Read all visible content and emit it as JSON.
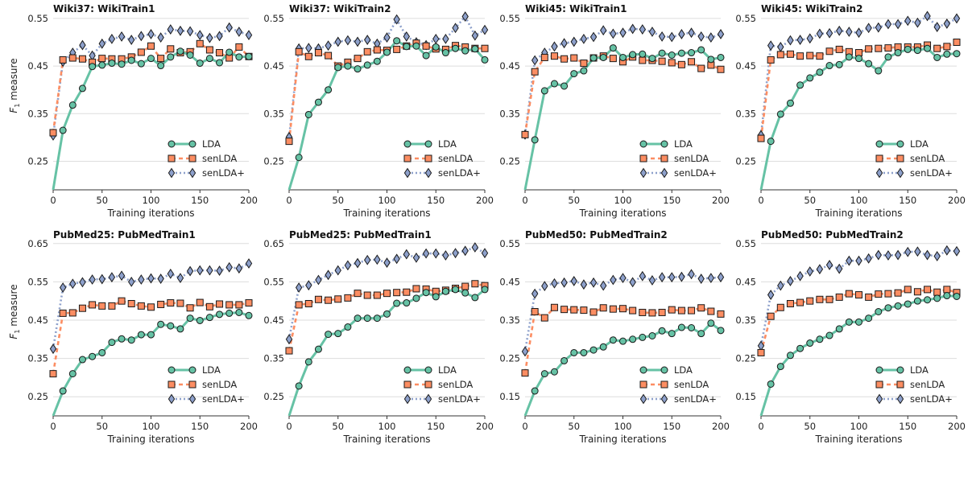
{
  "figure": {
    "ylabel_text": "F",
    "ylabel_sub": "1",
    "ylabel_suffix": " measure"
  },
  "colors": {
    "LDA": "#66c2a5",
    "senLDA": "#fc8d62",
    "senLDAplus": "#8da0cb",
    "marker_edge": "#1a1a1a",
    "grid": "#dddddd",
    "axis": "#333333"
  },
  "chart_data": [
    {
      "type": "line",
      "title": "Wiki37: WikiTrain1",
      "xlabel": "Training iterations",
      "ylabel": "F1 measure",
      "xlim": [
        0,
        200
      ],
      "ylim": [
        0.19,
        0.56
      ],
      "xticks": [
        "0",
        "50",
        "100",
        "150",
        "200"
      ],
      "yticks": [
        "0.25",
        "0.35",
        "0.45",
        "0.55"
      ],
      "legend_position": "lower-right",
      "grid": "horizontal",
      "x": [
        0,
        10,
        20,
        30,
        40,
        50,
        60,
        70,
        80,
        90,
        100,
        110,
        120,
        130,
        140,
        150,
        160,
        170,
        180,
        190,
        200
      ],
      "series": [
        {
          "name": "LDA",
          "values": [
            0.19,
            0.315,
            0.368,
            0.403,
            0.449,
            0.452,
            0.456,
            0.454,
            0.462,
            0.455,
            0.466,
            0.451,
            0.469,
            0.481,
            0.473,
            0.456,
            0.466,
            0.457,
            0.479,
            0.469,
            0.47
          ]
        },
        {
          "name": "senLDA",
          "values": [
            0.31,
            0.463,
            0.467,
            0.465,
            0.458,
            0.466,
            0.465,
            0.465,
            0.469,
            0.479,
            0.492,
            0.466,
            0.486,
            0.478,
            0.48,
            0.497,
            0.484,
            0.478,
            0.467,
            0.49,
            0.47
          ]
        },
        {
          "name": "senLDA+",
          "values": [
            0.304,
            0.459,
            0.478,
            0.494,
            0.472,
            0.497,
            0.507,
            0.512,
            0.505,
            0.513,
            0.517,
            0.51,
            0.527,
            0.524,
            0.523,
            0.515,
            0.509,
            0.513,
            0.531,
            0.522,
            0.515
          ]
        }
      ]
    },
    {
      "type": "line",
      "title": "Wiki37: WikiTrain2",
      "xlabel": "Training iterations",
      "ylabel": "",
      "xlim": [
        0,
        200
      ],
      "ylim": [
        0.19,
        0.56
      ],
      "xticks": [
        "0",
        "50",
        "100",
        "150",
        "200"
      ],
      "yticks": [
        "0.25",
        "0.35",
        "0.45",
        "0.55"
      ],
      "legend_position": "lower-right",
      "grid": "horizontal",
      "x": [
        0,
        10,
        20,
        30,
        40,
        50,
        60,
        70,
        80,
        90,
        100,
        110,
        120,
        130,
        140,
        150,
        160,
        170,
        180,
        190,
        200
      ],
      "series": [
        {
          "name": "LDA",
          "values": [
            0.19,
            0.258,
            0.348,
            0.374,
            0.4,
            0.447,
            0.45,
            0.444,
            0.452,
            0.46,
            0.479,
            0.503,
            0.491,
            0.492,
            0.472,
            0.49,
            0.478,
            0.487,
            0.482,
            0.486,
            0.463
          ]
        },
        {
          "name": "senLDA",
          "values": [
            0.292,
            0.48,
            0.47,
            0.478,
            0.472,
            0.45,
            0.458,
            0.466,
            0.48,
            0.484,
            0.483,
            0.485,
            0.492,
            0.498,
            0.492,
            0.486,
            0.485,
            0.493,
            0.49,
            0.487,
            0.487
          ]
        },
        {
          "name": "senLDA+",
          "values": [
            0.301,
            0.487,
            0.488,
            0.487,
            0.493,
            0.501,
            0.504,
            0.501,
            0.505,
            0.497,
            0.51,
            0.548,
            0.512,
            0.5,
            0.494,
            0.507,
            0.507,
            0.53,
            0.554,
            0.514,
            0.526
          ]
        }
      ]
    },
    {
      "type": "line",
      "title": "Wiki45: WikiTrain1",
      "xlabel": "Training iterations",
      "ylabel": "",
      "xlim": [
        0,
        200
      ],
      "ylim": [
        0.19,
        0.56
      ],
      "xticks": [
        "0",
        "50",
        "100",
        "150",
        "200"
      ],
      "yticks": [
        "0.25",
        "0.35",
        "0.45",
        "0.55"
      ],
      "legend_position": "lower-right",
      "grid": "horizontal",
      "x": [
        0,
        10,
        20,
        30,
        40,
        50,
        60,
        70,
        80,
        90,
        100,
        110,
        120,
        130,
        140,
        150,
        160,
        170,
        180,
        190,
        200
      ],
      "series": [
        {
          "name": "LDA",
          "values": [
            0.19,
            0.295,
            0.398,
            0.413,
            0.408,
            0.434,
            0.44,
            0.467,
            0.468,
            0.488,
            0.468,
            0.474,
            0.475,
            0.466,
            0.477,
            0.473,
            0.477,
            0.478,
            0.484,
            0.464,
            0.468
          ]
        },
        {
          "name": "senLDA",
          "values": [
            0.306,
            0.438,
            0.468,
            0.471,
            0.465,
            0.467,
            0.456,
            0.467,
            0.471,
            0.466,
            0.459,
            0.469,
            0.462,
            0.462,
            0.46,
            0.457,
            0.453,
            0.459,
            0.445,
            0.452,
            0.443
          ]
        },
        {
          "name": "senLDA+",
          "values": [
            0.306,
            0.462,
            0.478,
            0.491,
            0.498,
            0.501,
            0.507,
            0.511,
            0.525,
            0.518,
            0.52,
            0.528,
            0.527,
            0.522,
            0.512,
            0.511,
            0.517,
            0.52,
            0.512,
            0.51,
            0.517
          ]
        }
      ]
    },
    {
      "type": "line",
      "title": "Wiki45: WikiTrain2",
      "xlabel": "Training iterations",
      "ylabel": "",
      "xlim": [
        0,
        200
      ],
      "ylim": [
        0.19,
        0.56
      ],
      "xticks": [
        "0",
        "50",
        "100",
        "150",
        "200"
      ],
      "yticks": [
        "0.25",
        "0.35",
        "0.45",
        "0.55"
      ],
      "legend_position": "lower-right",
      "grid": "horizontal",
      "x": [
        0,
        10,
        20,
        30,
        40,
        50,
        60,
        70,
        80,
        90,
        100,
        110,
        120,
        130,
        140,
        150,
        160,
        170,
        180,
        190,
        200
      ],
      "series": [
        {
          "name": "LDA",
          "values": [
            0.19,
            0.292,
            0.349,
            0.372,
            0.41,
            0.425,
            0.437,
            0.451,
            0.453,
            0.469,
            0.466,
            0.455,
            0.44,
            0.469,
            0.478,
            0.485,
            0.483,
            0.487,
            0.468,
            0.475,
            0.476
          ]
        },
        {
          "name": "senLDA",
          "values": [
            0.298,
            0.463,
            0.474,
            0.475,
            0.471,
            0.472,
            0.471,
            0.481,
            0.485,
            0.48,
            0.478,
            0.486,
            0.487,
            0.488,
            0.49,
            0.49,
            0.49,
            0.494,
            0.487,
            0.491,
            0.5
          ]
        },
        {
          "name": "senLDA+",
          "values": [
            0.305,
            0.493,
            0.49,
            0.504,
            0.505,
            0.508,
            0.518,
            0.519,
            0.524,
            0.522,
            0.52,
            0.53,
            0.531,
            0.538,
            0.538,
            0.545,
            0.541,
            0.555,
            0.532,
            0.539,
            0.55
          ]
        }
      ]
    },
    {
      "type": "line",
      "title": "PubMed25: PubMedTrain1",
      "xlabel": "Training iterations",
      "ylabel": "F1 measure",
      "xlim": [
        0,
        200
      ],
      "ylim": [
        0.2,
        0.66
      ],
      "xticks": [
        "0",
        "50",
        "100",
        "150",
        "200"
      ],
      "yticks": [
        "0.25",
        "0.35",
        "0.45",
        "0.55",
        "0.65"
      ],
      "legend_position": "lower-right",
      "grid": "horizontal",
      "x": [
        0,
        10,
        20,
        30,
        40,
        50,
        60,
        70,
        80,
        90,
        100,
        110,
        120,
        130,
        140,
        150,
        160,
        170,
        180,
        190,
        200
      ],
      "series": [
        {
          "name": "LDA",
          "values": [
            0.2,
            0.265,
            0.31,
            0.347,
            0.355,
            0.365,
            0.392,
            0.401,
            0.398,
            0.412,
            0.412,
            0.439,
            0.435,
            0.427,
            0.455,
            0.449,
            0.457,
            0.465,
            0.468,
            0.47,
            0.462
          ]
        },
        {
          "name": "senLDA",
          "values": [
            0.31,
            0.468,
            0.469,
            0.481,
            0.49,
            0.487,
            0.487,
            0.5,
            0.493,
            0.487,
            0.484,
            0.491,
            0.495,
            0.494,
            0.482,
            0.496,
            0.485,
            0.492,
            0.49,
            0.49,
            0.495
          ]
        },
        {
          "name": "senLDA+",
          "values": [
            0.375,
            0.535,
            0.545,
            0.549,
            0.556,
            0.557,
            0.562,
            0.566,
            0.55,
            0.556,
            0.559,
            0.558,
            0.571,
            0.56,
            0.578,
            0.58,
            0.58,
            0.579,
            0.588,
            0.585,
            0.598
          ]
        }
      ]
    },
    {
      "type": "line",
      "title": "PubMed25: PubMedTrain1",
      "xlabel": "Training iterations",
      "ylabel": "",
      "xlim": [
        0,
        200
      ],
      "ylim": [
        0.2,
        0.66
      ],
      "xticks": [
        "0",
        "50",
        "100",
        "150",
        "200"
      ],
      "yticks": [
        "0.25",
        "0.35",
        "0.45",
        "0.55",
        "0.65"
      ],
      "legend_position": "lower-right",
      "grid": "horizontal",
      "x": [
        0,
        10,
        20,
        30,
        40,
        50,
        60,
        70,
        80,
        90,
        100,
        110,
        120,
        130,
        140,
        150,
        160,
        170,
        180,
        190,
        200
      ],
      "series": [
        {
          "name": "LDA",
          "values": [
            0.2,
            0.278,
            0.341,
            0.374,
            0.413,
            0.415,
            0.432,
            0.455,
            0.455,
            0.455,
            0.466,
            0.494,
            0.495,
            0.507,
            0.522,
            0.511,
            0.525,
            0.53,
            0.521,
            0.509,
            0.53
          ]
        },
        {
          "name": "senLDA",
          "values": [
            0.37,
            0.49,
            0.493,
            0.504,
            0.502,
            0.505,
            0.508,
            0.52,
            0.515,
            0.515,
            0.52,
            0.522,
            0.523,
            0.532,
            0.531,
            0.525,
            0.528,
            0.533,
            0.538,
            0.545,
            0.54
          ]
        },
        {
          "name": "senLDA+",
          "values": [
            0.4,
            0.535,
            0.541,
            0.555,
            0.568,
            0.58,
            0.593,
            0.599,
            0.607,
            0.608,
            0.6,
            0.61,
            0.622,
            0.613,
            0.624,
            0.624,
            0.619,
            0.625,
            0.631,
            0.64,
            0.625
          ]
        }
      ]
    },
    {
      "type": "line",
      "title": "PubMed50: PubMedTrain2",
      "xlabel": "Training iterations",
      "ylabel": "",
      "xlim": [
        0,
        200
      ],
      "ylim": [
        0.1,
        0.56
      ],
      "xticks": [
        "0",
        "50",
        "100",
        "150",
        "200"
      ],
      "yticks": [
        "0.15",
        "0.25",
        "0.35",
        "0.45",
        "0.55"
      ],
      "legend_position": "lower-right",
      "grid": "horizontal",
      "x": [
        0,
        10,
        20,
        30,
        40,
        50,
        60,
        70,
        80,
        90,
        100,
        110,
        120,
        130,
        140,
        150,
        160,
        170,
        180,
        190,
        200
      ],
      "series": [
        {
          "name": "LDA",
          "values": [
            0.1,
            0.165,
            0.21,
            0.215,
            0.244,
            0.265,
            0.265,
            0.272,
            0.28,
            0.298,
            0.295,
            0.3,
            0.305,
            0.309,
            0.322,
            0.315,
            0.331,
            0.33,
            0.315,
            0.342,
            0.323
          ]
        },
        {
          "name": "senLDA",
          "values": [
            0.212,
            0.372,
            0.356,
            0.383,
            0.378,
            0.377,
            0.376,
            0.371,
            0.382,
            0.379,
            0.38,
            0.375,
            0.37,
            0.369,
            0.37,
            0.377,
            0.375,
            0.375,
            0.382,
            0.373,
            0.366
          ]
        },
        {
          "name": "senLDA+",
          "values": [
            0.268,
            0.419,
            0.439,
            0.446,
            0.448,
            0.452,
            0.443,
            0.448,
            0.44,
            0.455,
            0.46,
            0.449,
            0.465,
            0.454,
            0.462,
            0.462,
            0.463,
            0.47,
            0.458,
            0.46,
            0.462
          ]
        }
      ]
    },
    {
      "type": "line",
      "title": "PubMed50: PubMedTrain2",
      "xlabel": "Training iterations",
      "ylabel": "",
      "xlim": [
        0,
        200
      ],
      "ylim": [
        0.1,
        0.56
      ],
      "xticks": [
        "0",
        "50",
        "100",
        "150",
        "200"
      ],
      "yticks": [
        "0.15",
        "0.25",
        "0.35",
        "0.45",
        "0.55"
      ],
      "legend_position": "lower-right",
      "grid": "horizontal",
      "x": [
        0,
        10,
        20,
        30,
        40,
        50,
        60,
        70,
        80,
        90,
        100,
        110,
        120,
        130,
        140,
        150,
        160,
        170,
        180,
        190,
        200
      ],
      "series": [
        {
          "name": "LDA",
          "values": [
            0.1,
            0.183,
            0.229,
            0.258,
            0.276,
            0.29,
            0.3,
            0.31,
            0.327,
            0.345,
            0.345,
            0.355,
            0.372,
            0.382,
            0.387,
            0.392,
            0.4,
            0.403,
            0.407,
            0.414,
            0.412
          ]
        },
        {
          "name": "senLDA",
          "values": [
            0.265,
            0.36,
            0.383,
            0.393,
            0.396,
            0.4,
            0.404,
            0.404,
            0.41,
            0.419,
            0.416,
            0.41,
            0.418,
            0.419,
            0.421,
            0.43,
            0.424,
            0.43,
            0.423,
            0.43,
            0.422
          ]
        },
        {
          "name": "senLDA+",
          "values": [
            0.283,
            0.416,
            0.44,
            0.452,
            0.465,
            0.477,
            0.483,
            0.494,
            0.484,
            0.505,
            0.505,
            0.511,
            0.52,
            0.519,
            0.52,
            0.528,
            0.529,
            0.52,
            0.517,
            0.532,
            0.53
          ]
        }
      ]
    }
  ]
}
